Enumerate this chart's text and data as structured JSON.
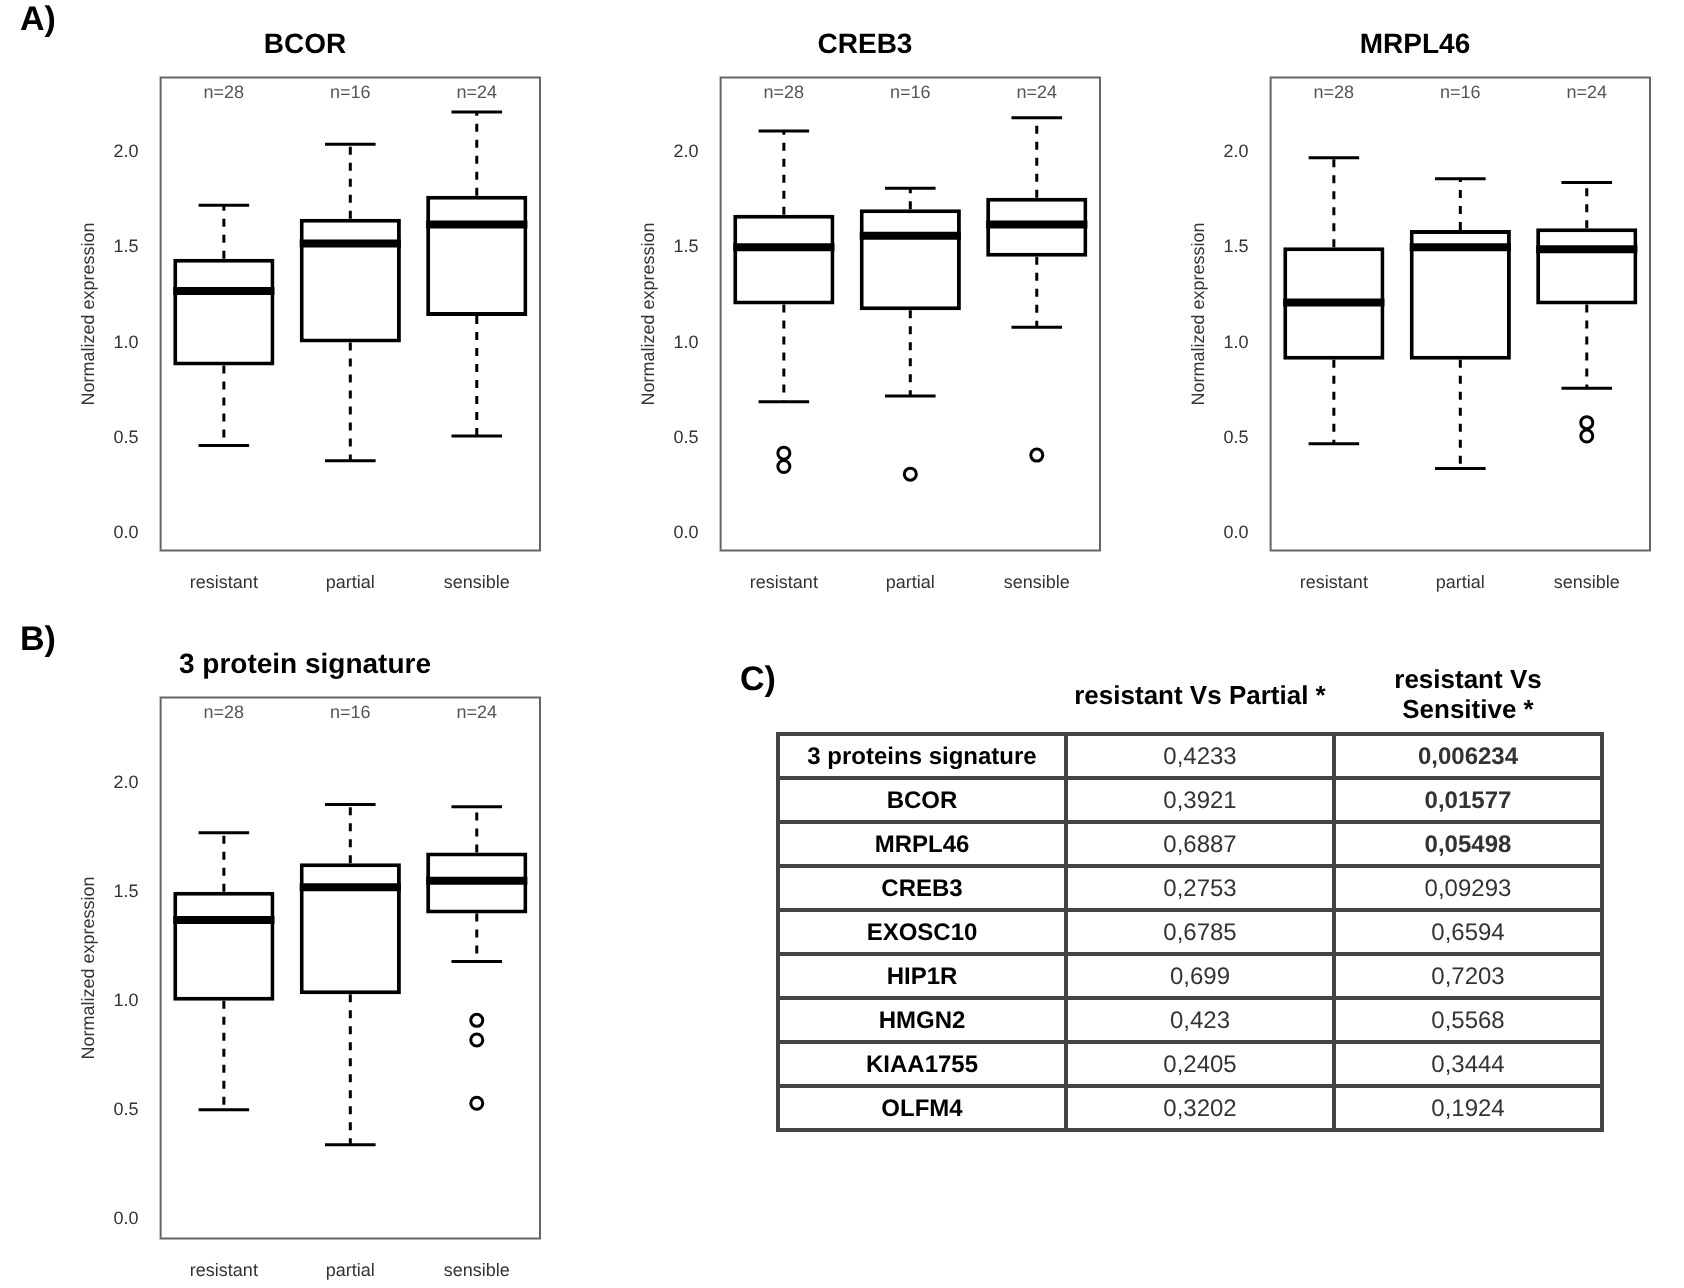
{
  "chart_data": [
    {
      "type": "box",
      "title": "BCOR",
      "ylabel": "Normalized expression",
      "categories": [
        "resistant",
        "partial",
        "sensible"
      ],
      "color": "#000000",
      "boxes": [
        {
          "low": 0.46,
          "q1": 0.88,
          "median": 1.27,
          "q3": 1.44,
          "high": 1.72
        },
        {
          "low": 0.38,
          "q1": 1.0,
          "median": 1.52,
          "q3": 1.65,
          "high": 2.04
        },
        {
          "low": 0.51,
          "q1": 1.14,
          "median": 1.62,
          "q3": 1.77,
          "high": 2.21
        }
      ],
      "ylim": [
        -0.09,
        2.39
      ],
      "yticks": [
        {
          "value": 0,
          "label": "0.0"
        },
        {
          "value": 0.5,
          "label": "0.5"
        },
        {
          "value": 1,
          "label": "1.0"
        },
        {
          "value": 1.5,
          "label": "1.5"
        },
        {
          "value": 2,
          "label": "2.0"
        }
      ],
      "annotations": [
        "A)",
        "n=28",
        "n=16",
        "n=24"
      ]
    },
    {
      "type": "box",
      "title": "CREB3",
      "ylabel": "Normalized expression",
      "categories": [
        "resistant",
        "partial",
        "sensible"
      ],
      "color": "#000000",
      "boxes": [
        {
          "low": 0.69,
          "q1": 1.2,
          "median": 1.5,
          "q3": 1.67,
          "high": 2.11,
          "outliers": [
            0.42,
            0.35
          ]
        },
        {
          "low": 0.72,
          "q1": 1.17,
          "median": 1.56,
          "q3": 1.7,
          "high": 1.81,
          "outliers": [
            0.31
          ]
        },
        {
          "low": 1.08,
          "q1": 1.45,
          "median": 1.62,
          "q3": 1.76,
          "high": 2.18,
          "outliers": [
            0.41
          ]
        }
      ],
      "ylim": [
        -0.09,
        2.39
      ],
      "yticks": [
        {
          "value": 0,
          "label": "0.0"
        },
        {
          "value": 0.5,
          "label": "0.5"
        },
        {
          "value": 1,
          "label": "1.0"
        },
        {
          "value": 1.5,
          "label": "1.5"
        },
        {
          "value": 2,
          "label": "2.0"
        }
      ],
      "annotations": [
        "n=28",
        "n=16",
        "n=24"
      ]
    },
    {
      "type": "box",
      "title": "MRPL46",
      "ylabel": "Normalized expression",
      "categories": [
        "resistant",
        "partial",
        "sensible"
      ],
      "color": "#000000",
      "boxes": [
        {
          "low": 0.47,
          "q1": 0.91,
          "median": 1.21,
          "q3": 1.5,
          "high": 1.97
        },
        {
          "low": 0.34,
          "q1": 0.91,
          "median": 1.5,
          "q3": 1.59,
          "high": 1.86
        },
        {
          "low": 0.76,
          "q1": 1.2,
          "median": 1.49,
          "q3": 1.6,
          "high": 1.84,
          "outliers": [
            0.58,
            0.51
          ]
        }
      ],
      "ylim": [
        -0.09,
        2.39
      ],
      "yticks": [
        {
          "value": 0,
          "label": "0.0"
        },
        {
          "value": 0.5,
          "label": "0.5"
        },
        {
          "value": 1,
          "label": "1.0"
        },
        {
          "value": 1.5,
          "label": "1.5"
        },
        {
          "value": 2,
          "label": "2.0"
        }
      ],
      "annotations": [
        "n=28",
        "n=16",
        "n=24"
      ]
    },
    {
      "type": "box",
      "title": "3 protein signature",
      "ylabel": "Normalized expression",
      "categories": [
        "resistant",
        "partial",
        "sensible"
      ],
      "color": "#000000",
      "boxes": [
        {
          "low": 0.5,
          "q1": 1.0,
          "median": 1.37,
          "q3": 1.5,
          "high": 1.77
        },
        {
          "low": 0.34,
          "q1": 1.03,
          "median": 1.52,
          "q3": 1.63,
          "high": 1.9
        },
        {
          "low": 1.18,
          "q1": 1.4,
          "median": 1.55,
          "q3": 1.68,
          "high": 1.89,
          "outliers": [
            0.91,
            0.82,
            0.53
          ]
        }
      ],
      "ylim": [
        -0.09,
        2.39
      ],
      "yticks": [
        {
          "value": 0,
          "label": "0.0"
        },
        {
          "value": 0.5,
          "label": "0.5"
        },
        {
          "value": 1,
          "label": "1.0"
        },
        {
          "value": 1.5,
          "label": "1.5"
        },
        {
          "value": 2,
          "label": "2.0"
        }
      ],
      "annotations": [
        "B)",
        "n=28",
        "n=16",
        "n=24"
      ]
    },
    {
      "type": "heatmap",
      "categories": [
        "resistant Vs Partial *",
        "resistant Vs Sensitive *"
      ],
      "y_categories": [
        "3 proteins signature",
        "BCOR",
        "MRPL46",
        "CREB3",
        "EXOSC10",
        "HIP1R",
        "HMGN2",
        "KIAA1755",
        "OLFM4"
      ],
      "cells": [
        [
          0.4233,
          0.006234
        ],
        [
          0.3921,
          0.01577
        ],
        [
          0.6887,
          0.05498
        ],
        [
          0.2753,
          0.09293
        ],
        [
          0.6785,
          0.6594
        ],
        [
          0.699,
          0.7203
        ],
        [
          0.423,
          0.5568
        ],
        [
          0.2405,
          0.3444
        ],
        [
          0.3202,
          0.1924
        ]
      ],
      "cell_labels": [
        [
          "0,4233",
          "0,006234"
        ],
        [
          "0,3921",
          "0,01577"
        ],
        [
          "0,6887",
          "0,05498"
        ],
        [
          "0,2753",
          "0,09293"
        ],
        [
          "0,6785",
          "0,6594"
        ],
        [
          "0,699",
          "0,7203"
        ],
        [
          "0,423",
          "0,5568"
        ],
        [
          "0,2405",
          "0,3444"
        ],
        [
          "0,3202",
          "0,1924"
        ]
      ],
      "annotations": [
        "C)"
      ]
    }
  ]
}
